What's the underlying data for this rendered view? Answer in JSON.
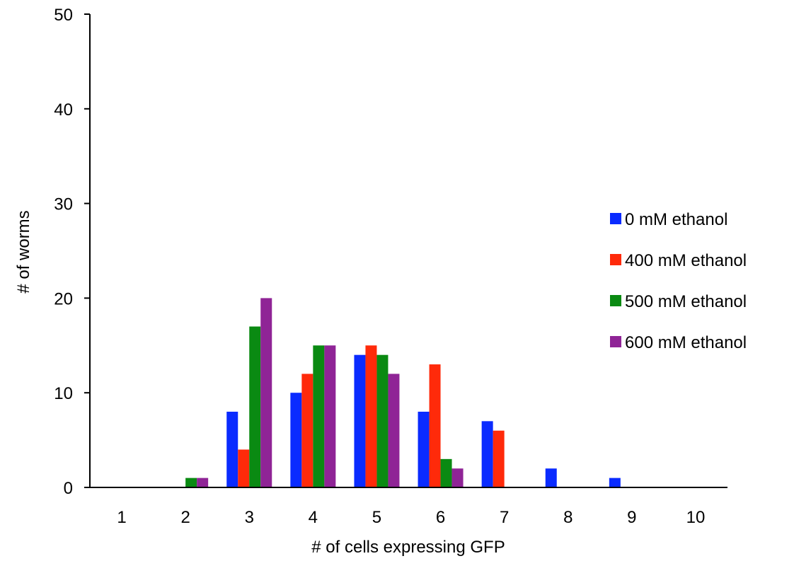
{
  "chart_data": {
    "type": "bar",
    "title": "",
    "xlabel": "# of cells expressing GFP",
    "ylabel": "# of worms",
    "ylim": [
      0,
      50
    ],
    "yticks": [
      "0",
      "10",
      "20",
      "30",
      "40",
      "50"
    ],
    "categories": [
      "1",
      "2",
      "3",
      "4",
      "5",
      "6",
      "7",
      "8",
      "9",
      "10"
    ],
    "grid": false,
    "legend_position": "right",
    "series": [
      {
        "name": "0 mM ethanol",
        "color": "#0a2bff",
        "values": [
          0,
          0,
          8,
          10,
          14,
          8,
          7,
          2,
          1,
          0
        ]
      },
      {
        "name": "400 mM ethanol",
        "color": "#ff2a0a",
        "values": [
          0,
          0,
          4,
          12,
          15,
          13,
          6,
          0,
          0,
          0
        ]
      },
      {
        "name": "500 mM ethanol",
        "color": "#0a8a12",
        "values": [
          0,
          1,
          17,
          15,
          14,
          3,
          0,
          0,
          0,
          0
        ]
      },
      {
        "name": "600 mM ethanol",
        "color": "#8f2496",
        "values": [
          0,
          1,
          20,
          15,
          12,
          2,
          0,
          0,
          0,
          0
        ]
      }
    ]
  }
}
